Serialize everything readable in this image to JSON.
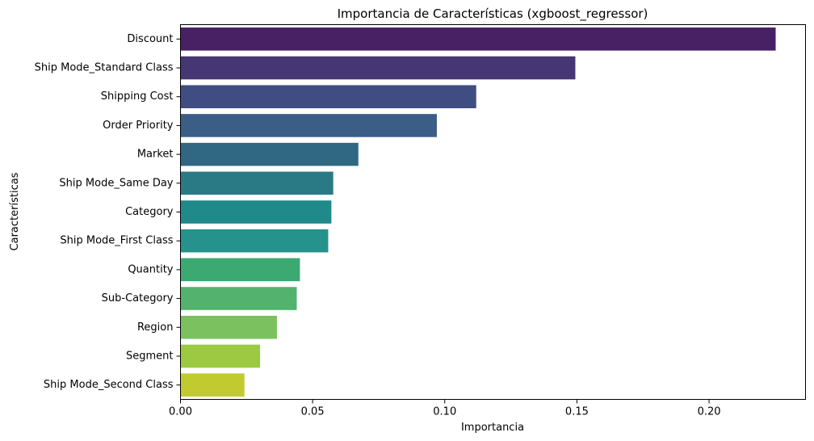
{
  "chart_data": {
    "type": "bar",
    "orientation": "horizontal",
    "title": "Importancia de Características (xgboost_regressor)",
    "xlabel": "Importancia",
    "ylabel": "Características",
    "xlim": [
      0,
      0.2365
    ],
    "xticks": [
      0.0,
      0.05,
      0.1,
      0.15,
      0.2
    ],
    "xtick_labels": [
      "0.00",
      "0.05",
      "0.10",
      "0.15",
      "0.20"
    ],
    "grid": false,
    "categories": [
      "Discount",
      "Ship Mode_Standard Class",
      "Shipping Cost",
      "Order Priority",
      "Market",
      "Ship Mode_Same Day",
      "Category",
      "Ship Mode_First Class",
      "Quantity",
      "Sub-Category",
      "Region",
      "Segment",
      "Ship Mode_Second Class"
    ],
    "values": [
      0.2252,
      0.1494,
      0.1119,
      0.097,
      0.0673,
      0.0578,
      0.0571,
      0.0559,
      0.0452,
      0.044,
      0.0365,
      0.0301,
      0.0242
    ],
    "colors": [
      "#472163",
      "#463673",
      "#3f4d83",
      "#3b5e86",
      "#306884",
      "#2a7a85",
      "#20898a",
      "#25928b",
      "#3ca972",
      "#54b26f",
      "#7cc160",
      "#9bc940",
      "#c1cb30"
    ]
  }
}
